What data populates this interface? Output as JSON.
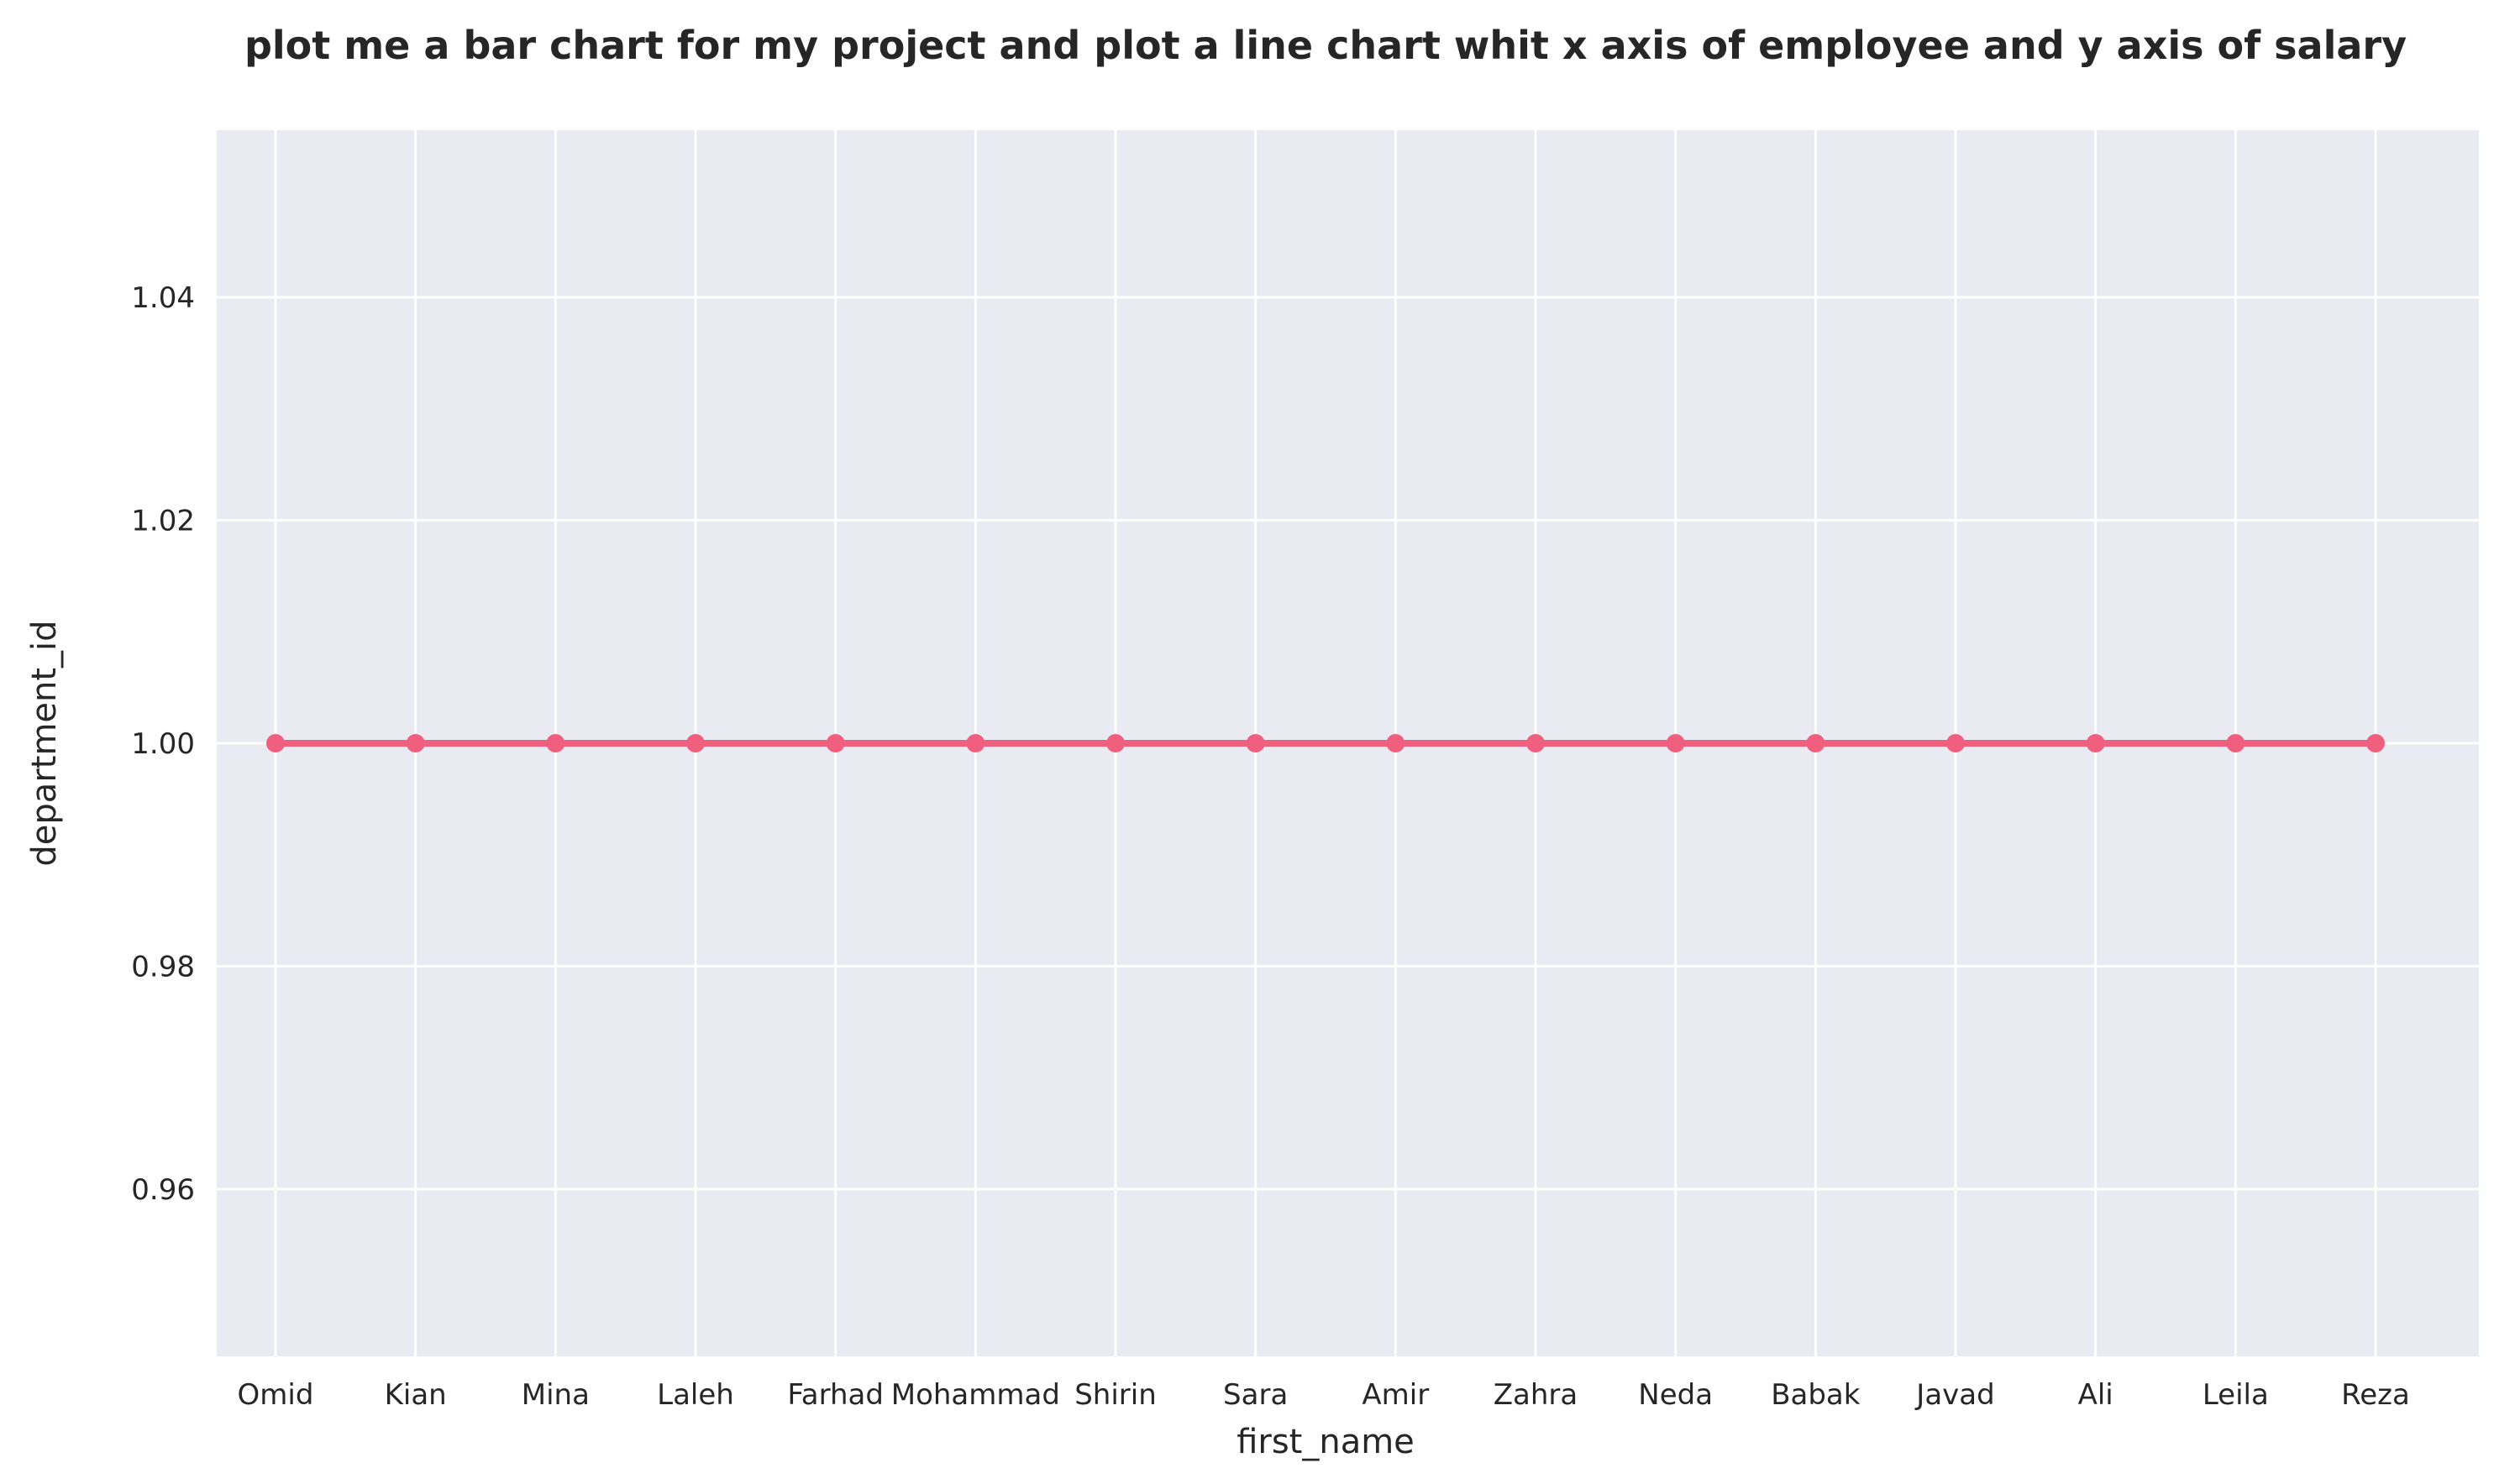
{
  "chart_data": {
    "type": "line",
    "title": "plot me a bar chart for my project and plot a line chart whit x axis of employee and y axis of salary",
    "xlabel": "first_name",
    "ylabel": "department_id",
    "categories": [
      "Omid",
      "Kian",
      "Mina",
      "Laleh",
      "Farhad",
      "Mohammad",
      "Shirin",
      "Sara",
      "Amir",
      "Zahra",
      "Neda",
      "Babak",
      "Javad",
      "Ali",
      "Leila",
      "Reza"
    ],
    "series": [
      {
        "values": [
          1,
          1,
          1,
          1,
          1,
          1,
          1,
          1,
          1,
          1,
          1,
          1,
          1,
          1,
          1,
          1
        ],
        "color": "#f0607e",
        "marker": "circle"
      }
    ],
    "ylim": [
      0.945,
      1.055
    ],
    "yticks": [
      0.96,
      0.98,
      1.0,
      1.02,
      1.04
    ],
    "ytick_labels": [
      "0.96",
      "0.98",
      "1.00",
      "1.02",
      "1.04"
    ],
    "grid": true,
    "style": {
      "plot_background": "#eaeaf2",
      "grid_color": "#ffffff",
      "text_color": "#262626"
    }
  }
}
